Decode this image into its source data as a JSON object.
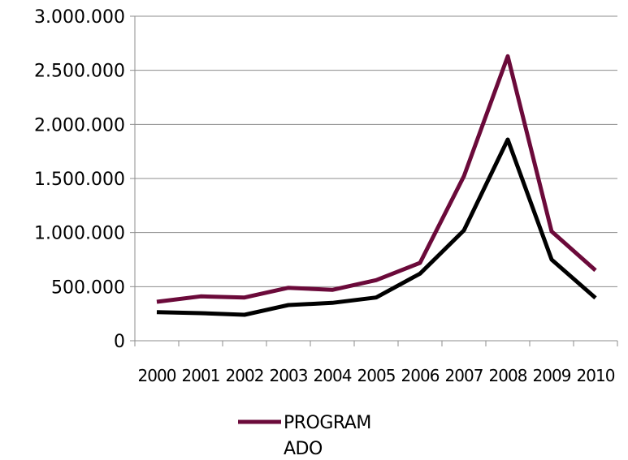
{
  "chart_data": {
    "type": "line",
    "title": "",
    "xlabel": "",
    "ylabel": "",
    "categories": [
      "2000",
      "2001",
      "2002",
      "2003",
      "2004",
      "2005",
      "2006",
      "2007",
      "2008",
      "2009",
      "2010"
    ],
    "ylim": [
      0,
      3000000
    ],
    "y_ticks": [
      0,
      500000,
      1000000,
      1500000,
      2000000,
      2500000,
      3000000
    ],
    "y_tick_labels": [
      "0",
      "500.000",
      "1.000.000",
      "1.500.000",
      "2.000.000",
      "2.500.000",
      "3.000.000"
    ],
    "grid": true,
    "legend_placement": "bottom",
    "series": [
      {
        "name": "PROGRAMADO",
        "legend_lines": [
          "PROGRAM",
          "ADO"
        ],
        "color": "#6b0a3a",
        "values": [
          360000,
          410000,
          400000,
          490000,
          470000,
          560000,
          720000,
          1520000,
          2630000,
          1010000,
          650000
        ]
      },
      {
        "color": "#000000",
        "values": [
          265000,
          255000,
          240000,
          330000,
          350000,
          400000,
          620000,
          1020000,
          1860000,
          750000,
          395000
        ]
      }
    ]
  }
}
